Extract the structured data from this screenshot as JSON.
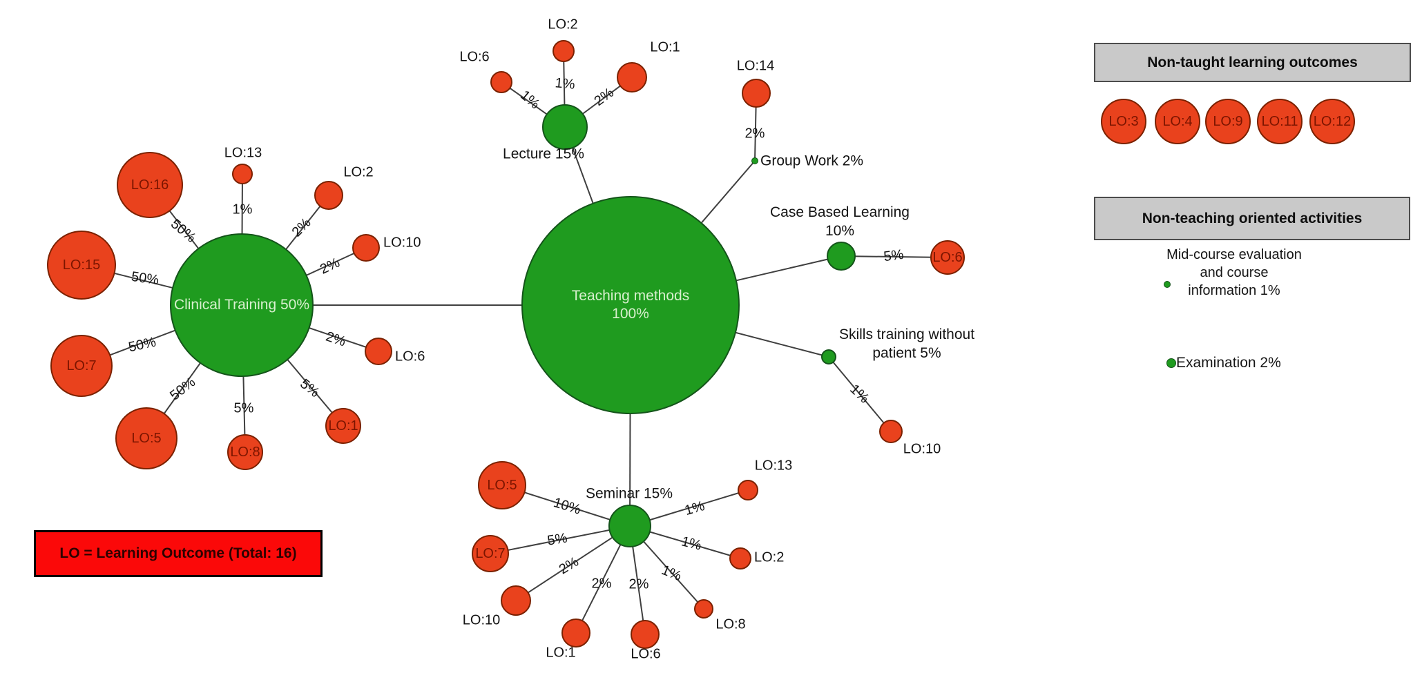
{
  "diagram": {
    "methods": [
      {
        "id": "teaching",
        "lines": [
          "Teaching methods",
          "100%"
        ]
      },
      {
        "id": "clinical",
        "lines": [
          "Clinical Training 50%"
        ]
      },
      {
        "id": "lecture",
        "lines": [
          "Lecture 15%"
        ]
      },
      {
        "id": "groupwork",
        "lines": [
          "Group Work 2%"
        ]
      },
      {
        "id": "casebased",
        "lines": [
          "Case Based Learning",
          "10%"
        ]
      },
      {
        "id": "skills",
        "lines": [
          "Skills training without",
          "patient 5%"
        ]
      },
      {
        "id": "seminar",
        "lines": [
          "Seminar 15%"
        ]
      }
    ],
    "links": [
      {
        "from": "teaching",
        "to": "clinical"
      },
      {
        "from": "teaching",
        "to": "lecture"
      },
      {
        "from": "teaching",
        "to": "groupwork"
      },
      {
        "from": "teaching",
        "to": "casebased"
      },
      {
        "from": "teaching",
        "to": "skills"
      },
      {
        "from": "teaching",
        "to": "seminar"
      }
    ],
    "outcomes": [
      {
        "id": "c16",
        "parent": "clinical",
        "label": "LO:16",
        "pct": "50%"
      },
      {
        "id": "c13",
        "parent": "clinical",
        "label": "LO:13",
        "pct": "1%"
      },
      {
        "id": "c2",
        "parent": "clinical",
        "label": "LO:2",
        "pct": "2%"
      },
      {
        "id": "c15",
        "parent": "clinical",
        "label": "LO:15",
        "pct": "50%"
      },
      {
        "id": "c10",
        "parent": "clinical",
        "label": "LO:10",
        "pct": "2%"
      },
      {
        "id": "c7",
        "parent": "clinical",
        "label": "LO:7",
        "pct": "50%"
      },
      {
        "id": "c5",
        "parent": "clinical",
        "label": "LO:5",
        "pct": "50%"
      },
      {
        "id": "c8",
        "parent": "clinical",
        "label": "LO:8",
        "pct": "5%"
      },
      {
        "id": "c1",
        "parent": "clinical",
        "label": "LO:1",
        "pct": "5%"
      },
      {
        "id": "c6",
        "parent": "clinical",
        "label": "LO:6",
        "pct": "2%"
      },
      {
        "id": "l6",
        "parent": "lecture",
        "label": "LO:6",
        "pct": "1%"
      },
      {
        "id": "l2",
        "parent": "lecture",
        "label": "LO:2",
        "pct": "1%"
      },
      {
        "id": "l1",
        "parent": "lecture",
        "label": "LO:1",
        "pct": "2%"
      },
      {
        "id": "g14",
        "parent": "groupwork",
        "label": "LO:14",
        "pct": "2%"
      },
      {
        "id": "cb6",
        "parent": "casebased",
        "label": "LO:6",
        "pct": "5%"
      },
      {
        "id": "s10",
        "parent": "skills",
        "label": "LO:10",
        "pct": "1%"
      },
      {
        "id": "se5",
        "parent": "seminar",
        "label": "LO:5",
        "pct": "10%"
      },
      {
        "id": "se7",
        "parent": "seminar",
        "label": "LO:7",
        "pct": "5%"
      },
      {
        "id": "se10",
        "parent": "seminar",
        "label": "LO:10",
        "pct": "2%"
      },
      {
        "id": "se1",
        "parent": "seminar",
        "label": "LO:1",
        "pct": "2%"
      },
      {
        "id": "se6",
        "parent": "seminar",
        "label": "LO:6",
        "pct": "2%"
      },
      {
        "id": "se8",
        "parent": "seminar",
        "label": "LO:8",
        "pct": "1%"
      },
      {
        "id": "se2",
        "parent": "seminar",
        "label": "LO:2",
        "pct": "1%"
      },
      {
        "id": "se13",
        "parent": "seminar",
        "label": "LO:13",
        "pct": "1%"
      }
    ]
  },
  "legend_non_taught": {
    "title": "Non-taught learning outcomes",
    "outcomes": [
      "LO:3",
      "LO:4",
      "LO:9",
      "LO:11",
      "LO:12"
    ]
  },
  "legend_non_teaching": {
    "title": "Non-teaching oriented activities",
    "items": [
      {
        "lines": [
          "Mid-course",
          "evaluation and",
          "course information",
          "1%"
        ]
      },
      {
        "lines": [
          "Examination 2%"
        ]
      }
    ]
  },
  "note": "LO = Learning Outcome (Total: 16)",
  "colors": {
    "method_fill": "#1f9b1f",
    "outcome_fill": "#e9421d",
    "edge": "#3f3f3f",
    "legend_header_fill": "#c9c9c9",
    "note_fill": "#fb0909"
  }
}
